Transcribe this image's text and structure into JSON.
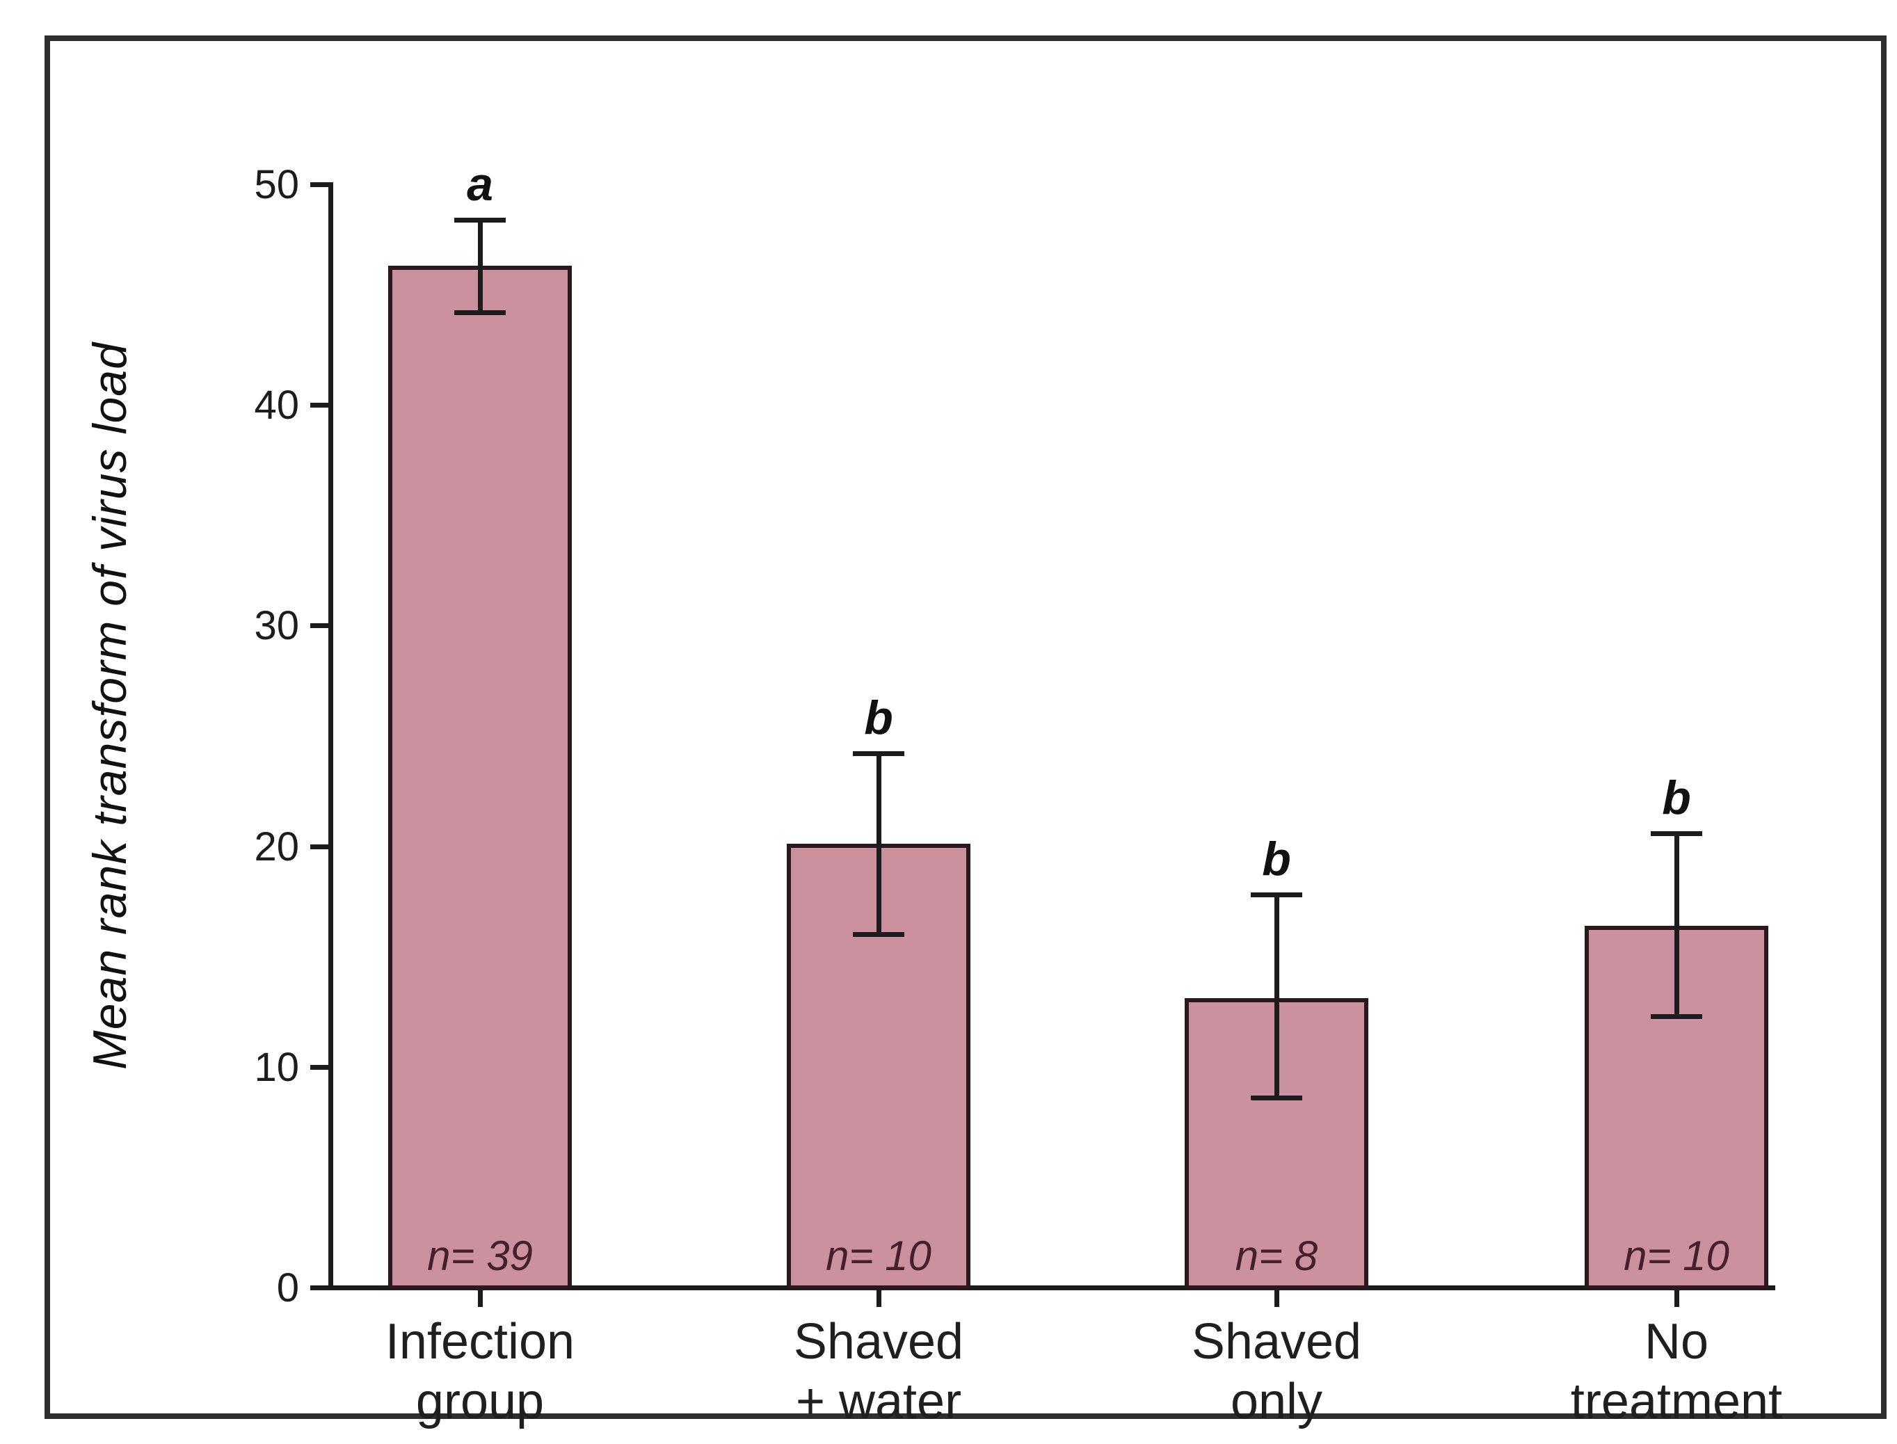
{
  "figure": {
    "background": "#ffffff",
    "border_color": "#2e2e2e"
  },
  "chart_data": {
    "type": "bar",
    "title": "",
    "xlabel": "",
    "ylabel": "Mean rank transform of virus load",
    "ylim": [
      0,
      50
    ],
    "yticks": [
      0,
      10,
      20,
      30,
      40,
      50
    ],
    "grid": "off",
    "legend": "none",
    "categories": [
      "Infection group",
      "Shaved + water",
      "Shaved only",
      "No treatment"
    ],
    "bars": [
      {
        "label_lines": [
          "Infection",
          "group"
        ],
        "value": 46.3,
        "err_high": 48.4,
        "err_low": 44.2,
        "sig_letter": "a",
        "n_label": "n= 39"
      },
      {
        "label_lines": [
          "Shaved",
          "+ water"
        ],
        "value": 20.1,
        "err_high": 24.2,
        "err_low": 16.0,
        "sig_letter": "b",
        "n_label": "n= 10"
      },
      {
        "label_lines": [
          "Shaved",
          "only"
        ],
        "value": 13.1,
        "err_high": 17.8,
        "err_low": 8.6,
        "sig_letter": "b",
        "n_label": "n= 8"
      },
      {
        "label_lines": [
          "No",
          "treatment"
        ],
        "value": 16.4,
        "err_high": 20.6,
        "err_low": 12.3,
        "sig_letter": "b",
        "n_label": "n= 10"
      }
    ],
    "colors": {
      "bar_fill": "#cc919e",
      "bar_border": "#2b181d",
      "error_bar": "#1c1c1c",
      "axis": "#1c1c1c",
      "n_text": "#44202a",
      "tick_text": "#1c1c1c",
      "category_text": "#1f1f1f"
    }
  }
}
